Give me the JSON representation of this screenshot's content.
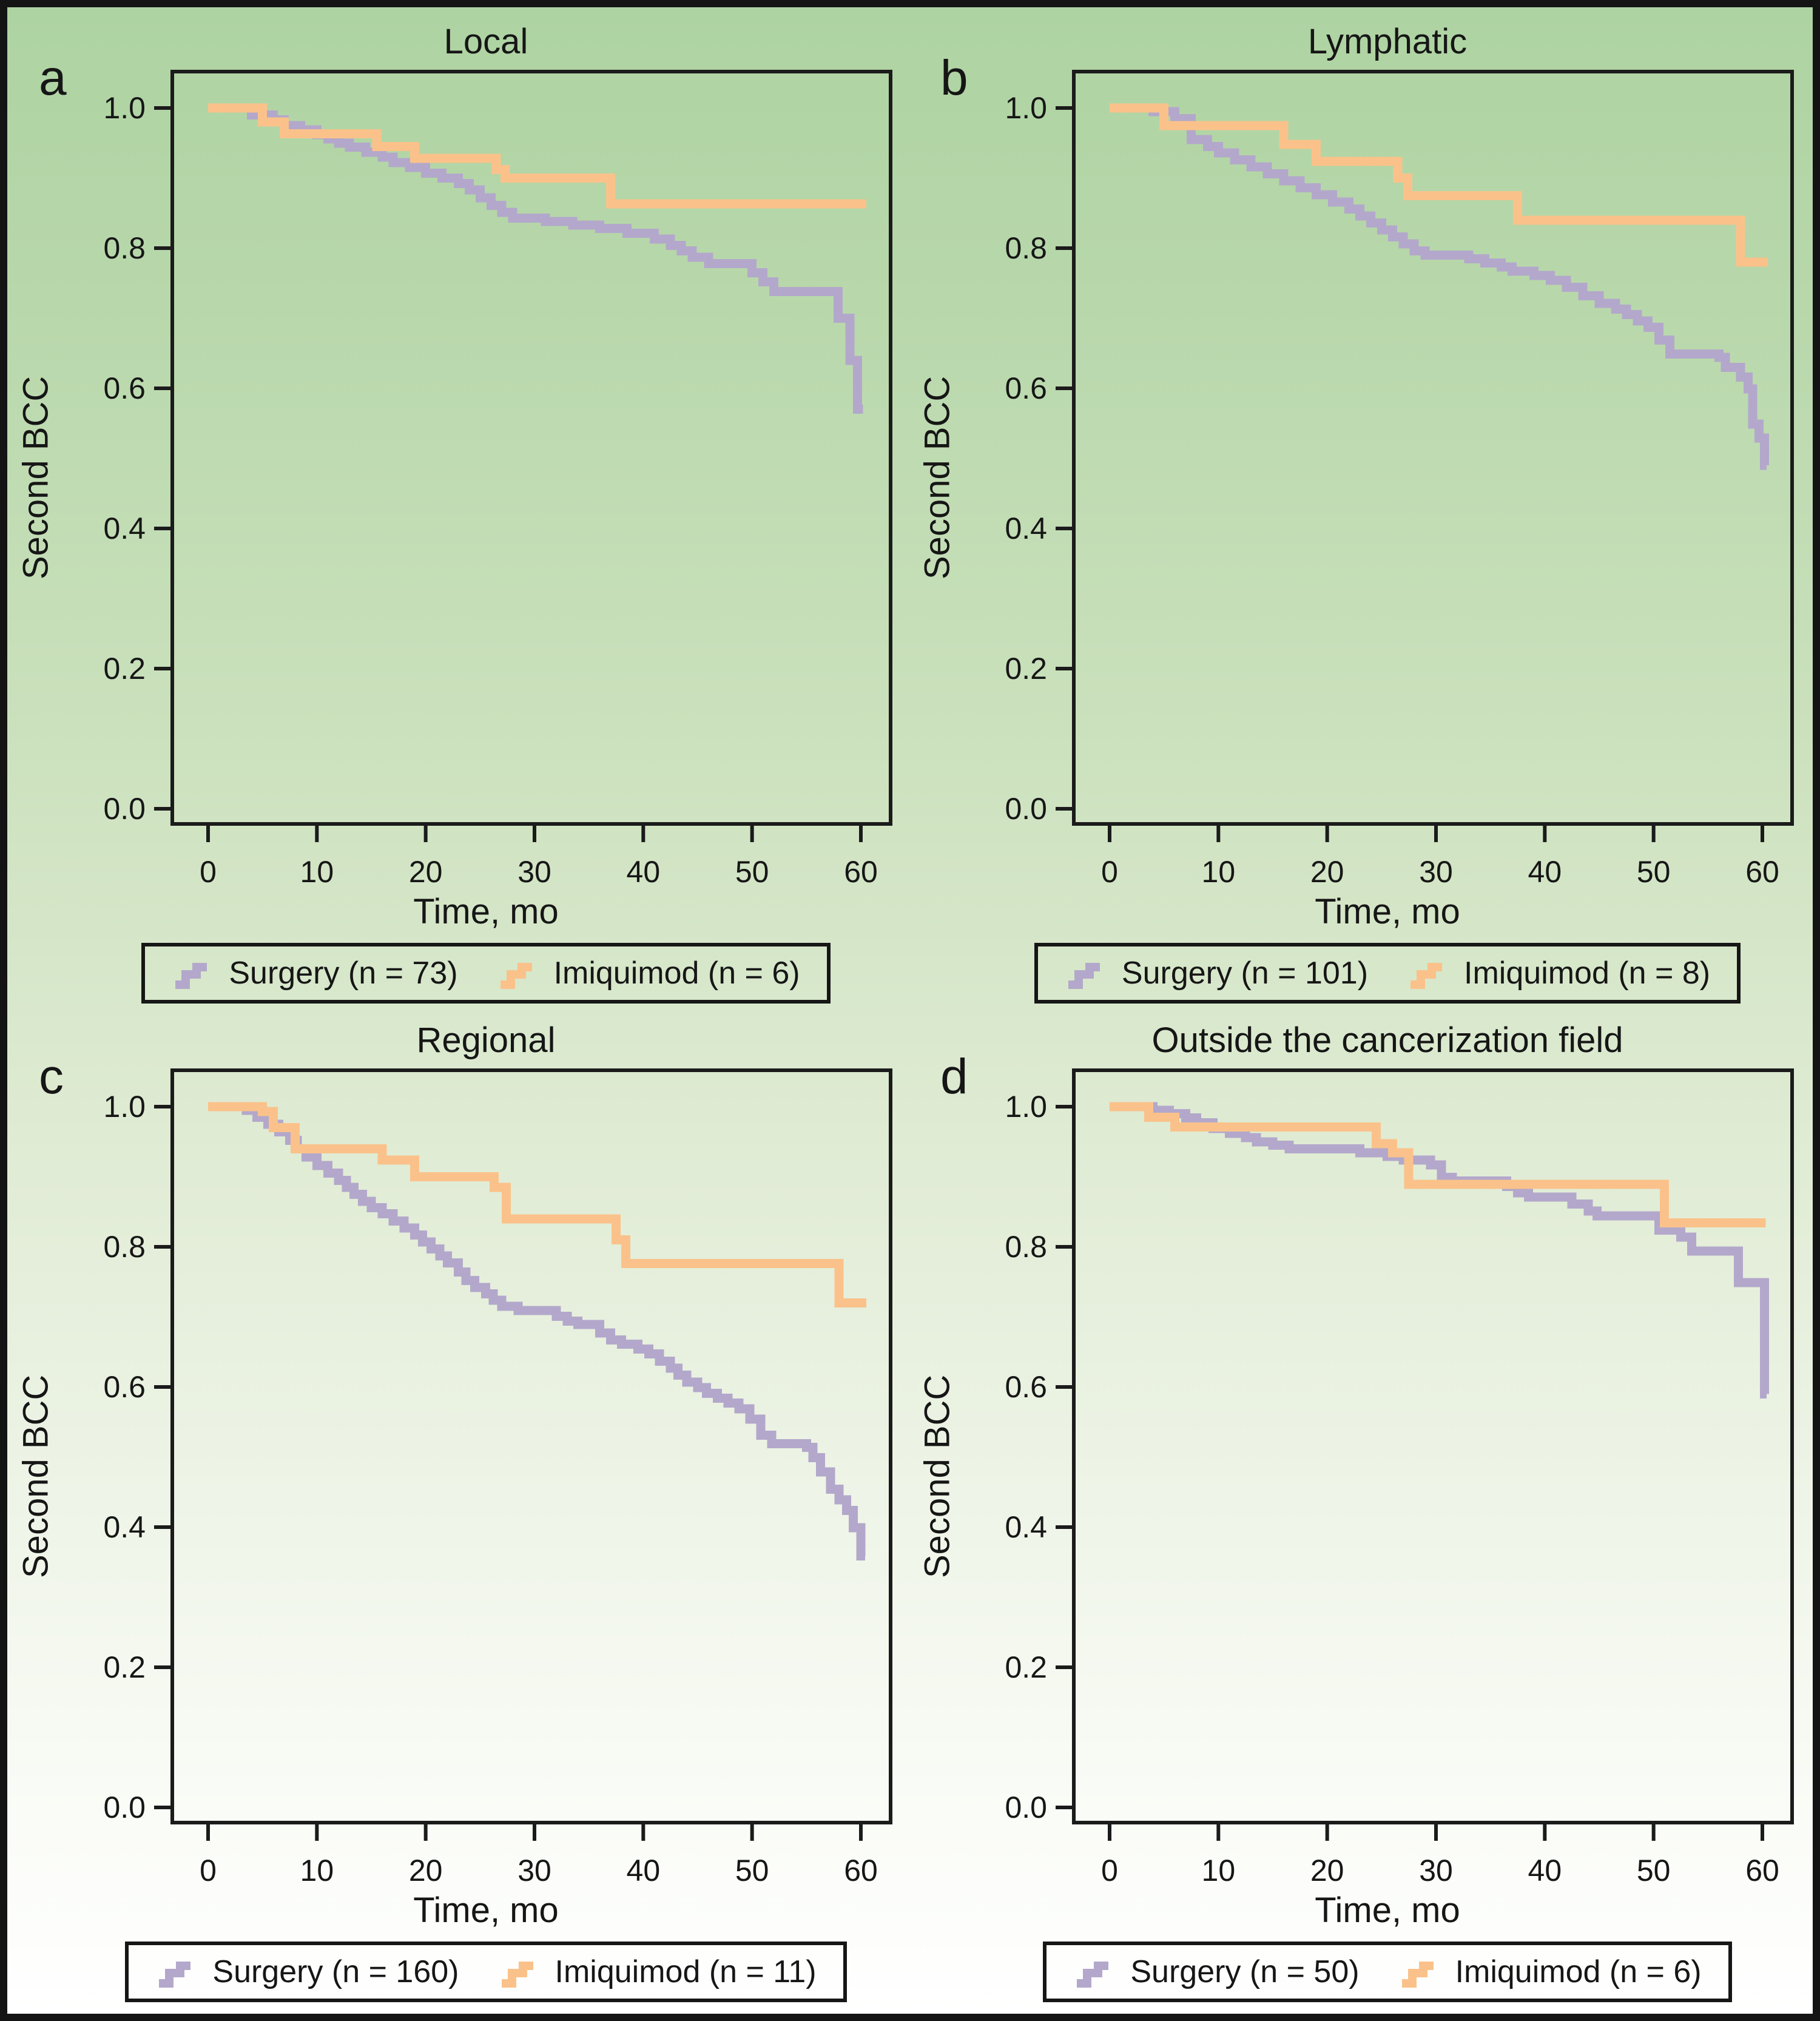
{
  "figure": {
    "ylabel": "Second BCC",
    "xlabel": "Time, mo",
    "colors": {
      "surgery": "#b3a8cb",
      "imiquimod": "#fac28a",
      "text": "#161616",
      "axis": "#1b1b1b",
      "background_top": "#aed3a2",
      "background_bottom": "#ffffff"
    }
  },
  "chart_data": [
    {
      "type": "line",
      "panel_letter": "a",
      "title": "Local",
      "xlabel": "Time, mo",
      "ylabel": "Second BCC",
      "xlim": [
        0,
        63
      ],
      "ylim": [
        0,
        1.05
      ],
      "xticks": [
        0,
        10,
        20,
        30,
        40,
        50,
        60
      ],
      "yticks": [
        0.0,
        0.2,
        0.4,
        0.6,
        0.8,
        1.0
      ],
      "grid": false,
      "legend_position": "below",
      "series": [
        {
          "name": "Surgery (n = 73)",
          "color_key": "surgery",
          "step_points": [
            [
              0,
              1
            ],
            [
              4,
              0.99
            ],
            [
              6,
              0.983
            ],
            [
              7,
              0.975
            ],
            [
              8.5,
              0.969
            ],
            [
              10,
              0.962
            ],
            [
              11,
              0.956
            ],
            [
              12,
              0.95
            ],
            [
              13,
              0.944
            ],
            [
              14.5,
              0.937
            ],
            [
              16,
              0.93
            ],
            [
              17,
              0.922
            ],
            [
              18.5,
              0.915
            ],
            [
              20,
              0.907
            ],
            [
              21.5,
              0.9
            ],
            [
              23,
              0.892
            ],
            [
              24,
              0.883
            ],
            [
              25,
              0.872
            ],
            [
              26,
              0.861
            ],
            [
              27,
              0.851
            ],
            [
              28,
              0.843
            ],
            [
              31,
              0.838
            ],
            [
              33.5,
              0.833
            ],
            [
              36,
              0.828
            ],
            [
              38.5,
              0.821
            ],
            [
              41,
              0.813
            ],
            [
              42.5,
              0.804
            ],
            [
              43.5,
              0.796
            ],
            [
              44.5,
              0.787
            ],
            [
              46,
              0.778
            ],
            [
              50,
              0.765
            ],
            [
              51,
              0.752
            ],
            [
              52,
              0.738
            ],
            [
              57.5,
              0.738
            ],
            [
              57.9,
              0.7
            ],
            [
              59,
              0.64
            ],
            [
              59.7,
              0.57
            ],
            [
              60.2,
              0.57
            ]
          ]
        },
        {
          "name": "Imiquimod (n = 6)",
          "color_key": "imiquimod",
          "step_points": [
            [
              0,
              1
            ],
            [
              5,
              0.98
            ],
            [
              7,
              0.963
            ],
            [
              15.5,
              0.945
            ],
            [
              19,
              0.928
            ],
            [
              26.5,
              0.912
            ],
            [
              27.3,
              0.9
            ],
            [
              37,
              0.863
            ],
            [
              60.5,
              0.863
            ]
          ]
        }
      ]
    },
    {
      "type": "line",
      "panel_letter": "b",
      "title": "Lymphatic",
      "xlabel": "Time, mo",
      "ylabel": "Second BCC",
      "xlim": [
        0,
        63
      ],
      "ylim": [
        0,
        1.05
      ],
      "xticks": [
        0,
        10,
        20,
        30,
        40,
        50,
        60
      ],
      "yticks": [
        0.0,
        0.2,
        0.4,
        0.6,
        0.8,
        1.0
      ],
      "grid": false,
      "legend_position": "below",
      "series": [
        {
          "name": "Surgery (n = 101)",
          "color_key": "surgery",
          "step_points": [
            [
              0,
              1
            ],
            [
              4,
              0.995
            ],
            [
              6,
              0.985
            ],
            [
              7.5,
              0.955
            ],
            [
              9,
              0.945
            ],
            [
              10,
              0.936
            ],
            [
              11.5,
              0.926
            ],
            [
              13,
              0.916
            ],
            [
              14.5,
              0.906
            ],
            [
              16,
              0.896
            ],
            [
              17.5,
              0.886
            ],
            [
              19,
              0.876
            ],
            [
              20.5,
              0.866
            ],
            [
              22,
              0.856
            ],
            [
              23,
              0.846
            ],
            [
              24,
              0.836
            ],
            [
              25,
              0.826
            ],
            [
              26,
              0.816
            ],
            [
              27,
              0.806
            ],
            [
              28,
              0.796
            ],
            [
              29,
              0.79
            ],
            [
              33,
              0.785
            ],
            [
              34.5,
              0.779
            ],
            [
              36,
              0.773
            ],
            [
              37,
              0.767
            ],
            [
              39,
              0.761
            ],
            [
              40.5,
              0.754
            ],
            [
              42,
              0.744
            ],
            [
              43.5,
              0.732
            ],
            [
              45,
              0.721
            ],
            [
              46.5,
              0.713
            ],
            [
              47.5,
              0.705
            ],
            [
              48.5,
              0.696
            ],
            [
              49.5,
              0.687
            ],
            [
              50.5,
              0.669
            ],
            [
              51.5,
              0.649
            ],
            [
              56,
              0.644
            ],
            [
              56.6,
              0.63
            ],
            [
              58,
              0.616
            ],
            [
              58.7,
              0.599
            ],
            [
              59.1,
              0.549
            ],
            [
              59.7,
              0.529
            ],
            [
              60.2,
              0.49
            ],
            [
              60.4,
              0.49
            ]
          ]
        },
        {
          "name": "Imiquimod (n = 8)",
          "color_key": "imiquimod",
          "step_points": [
            [
              0,
              1
            ],
            [
              5,
              0.975
            ],
            [
              16,
              0.948
            ],
            [
              19,
              0.924
            ],
            [
              26.5,
              0.9
            ],
            [
              27.4,
              0.875
            ],
            [
              37.5,
              0.84
            ],
            [
              58,
              0.78
            ],
            [
              60.5,
              0.78
            ]
          ]
        }
      ]
    },
    {
      "type": "line",
      "panel_letter": "c",
      "title": "Regional",
      "xlabel": "Time, mo",
      "ylabel": "Second BCC",
      "xlim": [
        0,
        63
      ],
      "ylim": [
        0,
        1.05
      ],
      "xticks": [
        0,
        10,
        20,
        30,
        40,
        50,
        60
      ],
      "yticks": [
        0.0,
        0.2,
        0.4,
        0.6,
        0.8,
        1.0
      ],
      "grid": false,
      "legend_position": "below",
      "series": [
        {
          "name": "Surgery (n = 160)",
          "color_key": "surgery",
          "step_points": [
            [
              0,
              1
            ],
            [
              3.5,
              0.995
            ],
            [
              4.5,
              0.985
            ],
            [
              5.5,
              0.975
            ],
            [
              6.5,
              0.964
            ],
            [
              7.5,
              0.952
            ],
            [
              8.2,
              0.94
            ],
            [
              9,
              0.928
            ],
            [
              10,
              0.916
            ],
            [
              11,
              0.905
            ],
            [
              12,
              0.895
            ],
            [
              12.7,
              0.885
            ],
            [
              13.4,
              0.875
            ],
            [
              14.2,
              0.865
            ],
            [
              15,
              0.856
            ],
            [
              16,
              0.847
            ],
            [
              17,
              0.837
            ],
            [
              18,
              0.827
            ],
            [
              19,
              0.817
            ],
            [
              19.7,
              0.807
            ],
            [
              20.5,
              0.797
            ],
            [
              21.3,
              0.787
            ],
            [
              22,
              0.777
            ],
            [
              23,
              0.764
            ],
            [
              23.7,
              0.752
            ],
            [
              24.5,
              0.742
            ],
            [
              25.5,
              0.733
            ],
            [
              26.2,
              0.724
            ],
            [
              27,
              0.715
            ],
            [
              28.5,
              0.709
            ],
            [
              32,
              0.701
            ],
            [
              33,
              0.694
            ],
            [
              34,
              0.689
            ],
            [
              36,
              0.677
            ],
            [
              37,
              0.667
            ],
            [
              38,
              0.661
            ],
            [
              39.5,
              0.654
            ],
            [
              40.5,
              0.647
            ],
            [
              41.5,
              0.637
            ],
            [
              42.5,
              0.627
            ],
            [
              43.2,
              0.617
            ],
            [
              44,
              0.607
            ],
            [
              45,
              0.599
            ],
            [
              45.8,
              0.591
            ],
            [
              46.8,
              0.584
            ],
            [
              47.8,
              0.577
            ],
            [
              48.8,
              0.569
            ],
            [
              49.8,
              0.554
            ],
            [
              50.8,
              0.531
            ],
            [
              51.8,
              0.519
            ],
            [
              55,
              0.514
            ],
            [
              55.6,
              0.499
            ],
            [
              56.3,
              0.479
            ],
            [
              57.2,
              0.454
            ],
            [
              58,
              0.439
            ],
            [
              58.7,
              0.424
            ],
            [
              59.3,
              0.399
            ],
            [
              60,
              0.359
            ],
            [
              60.4,
              0.359
            ]
          ]
        },
        {
          "name": "Imiquimod (n = 11)",
          "color_key": "imiquimod",
          "step_points": [
            [
              0,
              1
            ],
            [
              5,
              0.993
            ],
            [
              6,
              0.97
            ],
            [
              8,
              0.94
            ],
            [
              16,
              0.924
            ],
            [
              19,
              0.9
            ],
            [
              26.3,
              0.885
            ],
            [
              27.4,
              0.84
            ],
            [
              37.5,
              0.81
            ],
            [
              38.4,
              0.776
            ],
            [
              57.6,
              0.776
            ],
            [
              58,
              0.72
            ],
            [
              60.5,
              0.72
            ]
          ]
        }
      ]
    },
    {
      "type": "line",
      "panel_letter": "d",
      "title": "Outside the cancerization field",
      "xlabel": "Time, mo",
      "ylabel": "Second BCC",
      "xlim": [
        0,
        63
      ],
      "ylim": [
        0,
        1.05
      ],
      "xticks": [
        0,
        10,
        20,
        30,
        40,
        50,
        60
      ],
      "yticks": [
        0.0,
        0.2,
        0.4,
        0.6,
        0.8,
        1.0
      ],
      "grid": false,
      "legend_position": "below",
      "series": [
        {
          "name": "Surgery (n = 50)",
          "color_key": "surgery",
          "step_points": [
            [
              0,
              1
            ],
            [
              4,
              0.995
            ],
            [
              5.5,
              0.99
            ],
            [
              7,
              0.984
            ],
            [
              8,
              0.977
            ],
            [
              9.5,
              0.969
            ],
            [
              11,
              0.962
            ],
            [
              12.5,
              0.956
            ],
            [
              13.5,
              0.95
            ],
            [
              15,
              0.945
            ],
            [
              16.5,
              0.94
            ],
            [
              23,
              0.934
            ],
            [
              25.5,
              0.929
            ],
            [
              27,
              0.924
            ],
            [
              29.5,
              0.917
            ],
            [
              30.5,
              0.899
            ],
            [
              31.5,
              0.894
            ],
            [
              36.5,
              0.886
            ],
            [
              37.5,
              0.877
            ],
            [
              38.5,
              0.871
            ],
            [
              42.5,
              0.861
            ],
            [
              44,
              0.851
            ],
            [
              44.8,
              0.844
            ],
            [
              50.5,
              0.824
            ],
            [
              52.5,
              0.814
            ],
            [
              53.5,
              0.794
            ],
            [
              57.8,
              0.749
            ],
            [
              60.2,
              0.59
            ],
            [
              60.4,
              0.59
            ]
          ]
        },
        {
          "name": "Imiquimod (n = 6)",
          "color_key": "imiquimod",
          "step_points": [
            [
              0,
              1
            ],
            [
              3.6,
              0.985
            ],
            [
              6,
              0.971
            ],
            [
              24.5,
              0.947
            ],
            [
              26,
              0.934
            ],
            [
              27.5,
              0.889
            ],
            [
              51,
              0.834
            ],
            [
              60.3,
              0.834
            ]
          ]
        }
      ]
    }
  ]
}
